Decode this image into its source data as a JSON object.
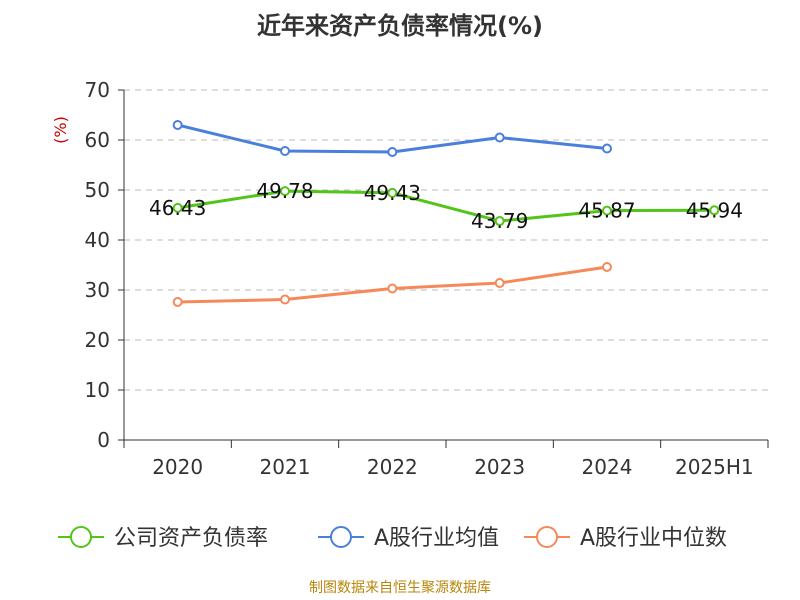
{
  "chart_data": {
    "type": "line",
    "title": "近年来资产负债率情况(%)",
    "ylabel": "(%)",
    "xlabel": "",
    "ylim": [
      0,
      70
    ],
    "y_ticks": [
      0,
      10,
      20,
      30,
      40,
      50,
      60,
      70
    ],
    "grid": true,
    "legend_position": "bottom",
    "categories": [
      "2020",
      "2021",
      "2022",
      "2023",
      "2024",
      "2025H1"
    ],
    "series": [
      {
        "name": "公司资产负债率",
        "color": "#52c41a",
        "values": [
          46.43,
          49.78,
          49.43,
          43.79,
          45.87,
          45.94
        ],
        "data_labels": [
          "46.43",
          "49.78",
          "49.43",
          "43.79",
          "45.87",
          "45.94"
        ]
      },
      {
        "name": "A股行业均值",
        "color": "#4a7fdb",
        "values": [
          63.0,
          57.8,
          57.6,
          60.5,
          58.3,
          null
        ]
      },
      {
        "name": "A股行业中位数",
        "color": "#f5895a",
        "values": [
          27.6,
          28.1,
          30.3,
          31.4,
          34.6,
          null
        ]
      }
    ]
  },
  "footer": {
    "source": "制图数据来自恒生聚源数据库"
  }
}
